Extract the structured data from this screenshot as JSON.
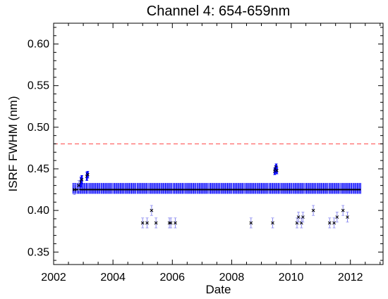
{
  "chart_data": {
    "type": "scatter",
    "title": "Channel 4: 654-659nm",
    "xlabel": "Date",
    "ylabel": "ISRF FWHM (nm)",
    "xlim": [
      2002.0,
      2013.1
    ],
    "ylim": [
      0.335,
      0.625
    ],
    "x_ticks": [
      "2002",
      "2004",
      "2006",
      "2008",
      "2010",
      "2012"
    ],
    "y_ticks": [
      "0.35",
      "0.40",
      "0.45",
      "0.50",
      "0.55",
      "0.60"
    ],
    "threshold": {
      "y": 0.48,
      "color": "#ff6666",
      "style": "dashed"
    },
    "errorbar_color": "#0000ff",
    "marker_color": "#000000",
    "main_band": {
      "x_start": 2002.65,
      "x_end": 2012.35,
      "y": 0.425,
      "y_err_low": 0.42,
      "y_err_high": 0.433
    },
    "points": [
      {
        "x": 2002.7,
        "y": 0.425,
        "err": 0.006
      },
      {
        "x": 2002.85,
        "y": 0.43,
        "err": 0.006
      },
      {
        "x": 2002.92,
        "y": 0.434,
        "err": 0.006
      },
      {
        "x": 2002.95,
        "y": 0.437,
        "err": 0.005
      },
      {
        "x": 2003.12,
        "y": 0.441,
        "err": 0.005
      },
      {
        "x": 2003.15,
        "y": 0.443,
        "err": 0.004
      },
      {
        "x": 2009.45,
        "y": 0.447,
        "err": 0.004
      },
      {
        "x": 2009.48,
        "y": 0.45,
        "err": 0.004
      },
      {
        "x": 2009.5,
        "y": 0.452,
        "err": 0.004
      },
      {
        "x": 2009.52,
        "y": 0.448,
        "err": 0.004
      },
      {
        "x": 2005.0,
        "y": 0.385,
        "err": 0.006
      },
      {
        "x": 2005.15,
        "y": 0.385,
        "err": 0.006
      },
      {
        "x": 2005.3,
        "y": 0.4,
        "err": 0.006
      },
      {
        "x": 2005.45,
        "y": 0.385,
        "err": 0.006
      },
      {
        "x": 2005.9,
        "y": 0.385,
        "err": 0.006
      },
      {
        "x": 2005.95,
        "y": 0.385,
        "err": 0.006
      },
      {
        "x": 2006.1,
        "y": 0.385,
        "err": 0.006
      },
      {
        "x": 2008.65,
        "y": 0.385,
        "err": 0.006
      },
      {
        "x": 2009.38,
        "y": 0.385,
        "err": 0.006
      },
      {
        "x": 2010.2,
        "y": 0.385,
        "err": 0.006
      },
      {
        "x": 2010.25,
        "y": 0.392,
        "err": 0.006
      },
      {
        "x": 2010.35,
        "y": 0.385,
        "err": 0.006
      },
      {
        "x": 2010.4,
        "y": 0.392,
        "err": 0.006
      },
      {
        "x": 2010.75,
        "y": 0.4,
        "err": 0.006
      },
      {
        "x": 2011.3,
        "y": 0.385,
        "err": 0.006
      },
      {
        "x": 2011.45,
        "y": 0.385,
        "err": 0.006
      },
      {
        "x": 2011.55,
        "y": 0.392,
        "err": 0.006
      },
      {
        "x": 2011.75,
        "y": 0.4,
        "err": 0.006
      },
      {
        "x": 2011.9,
        "y": 0.392,
        "err": 0.006
      }
    ]
  }
}
